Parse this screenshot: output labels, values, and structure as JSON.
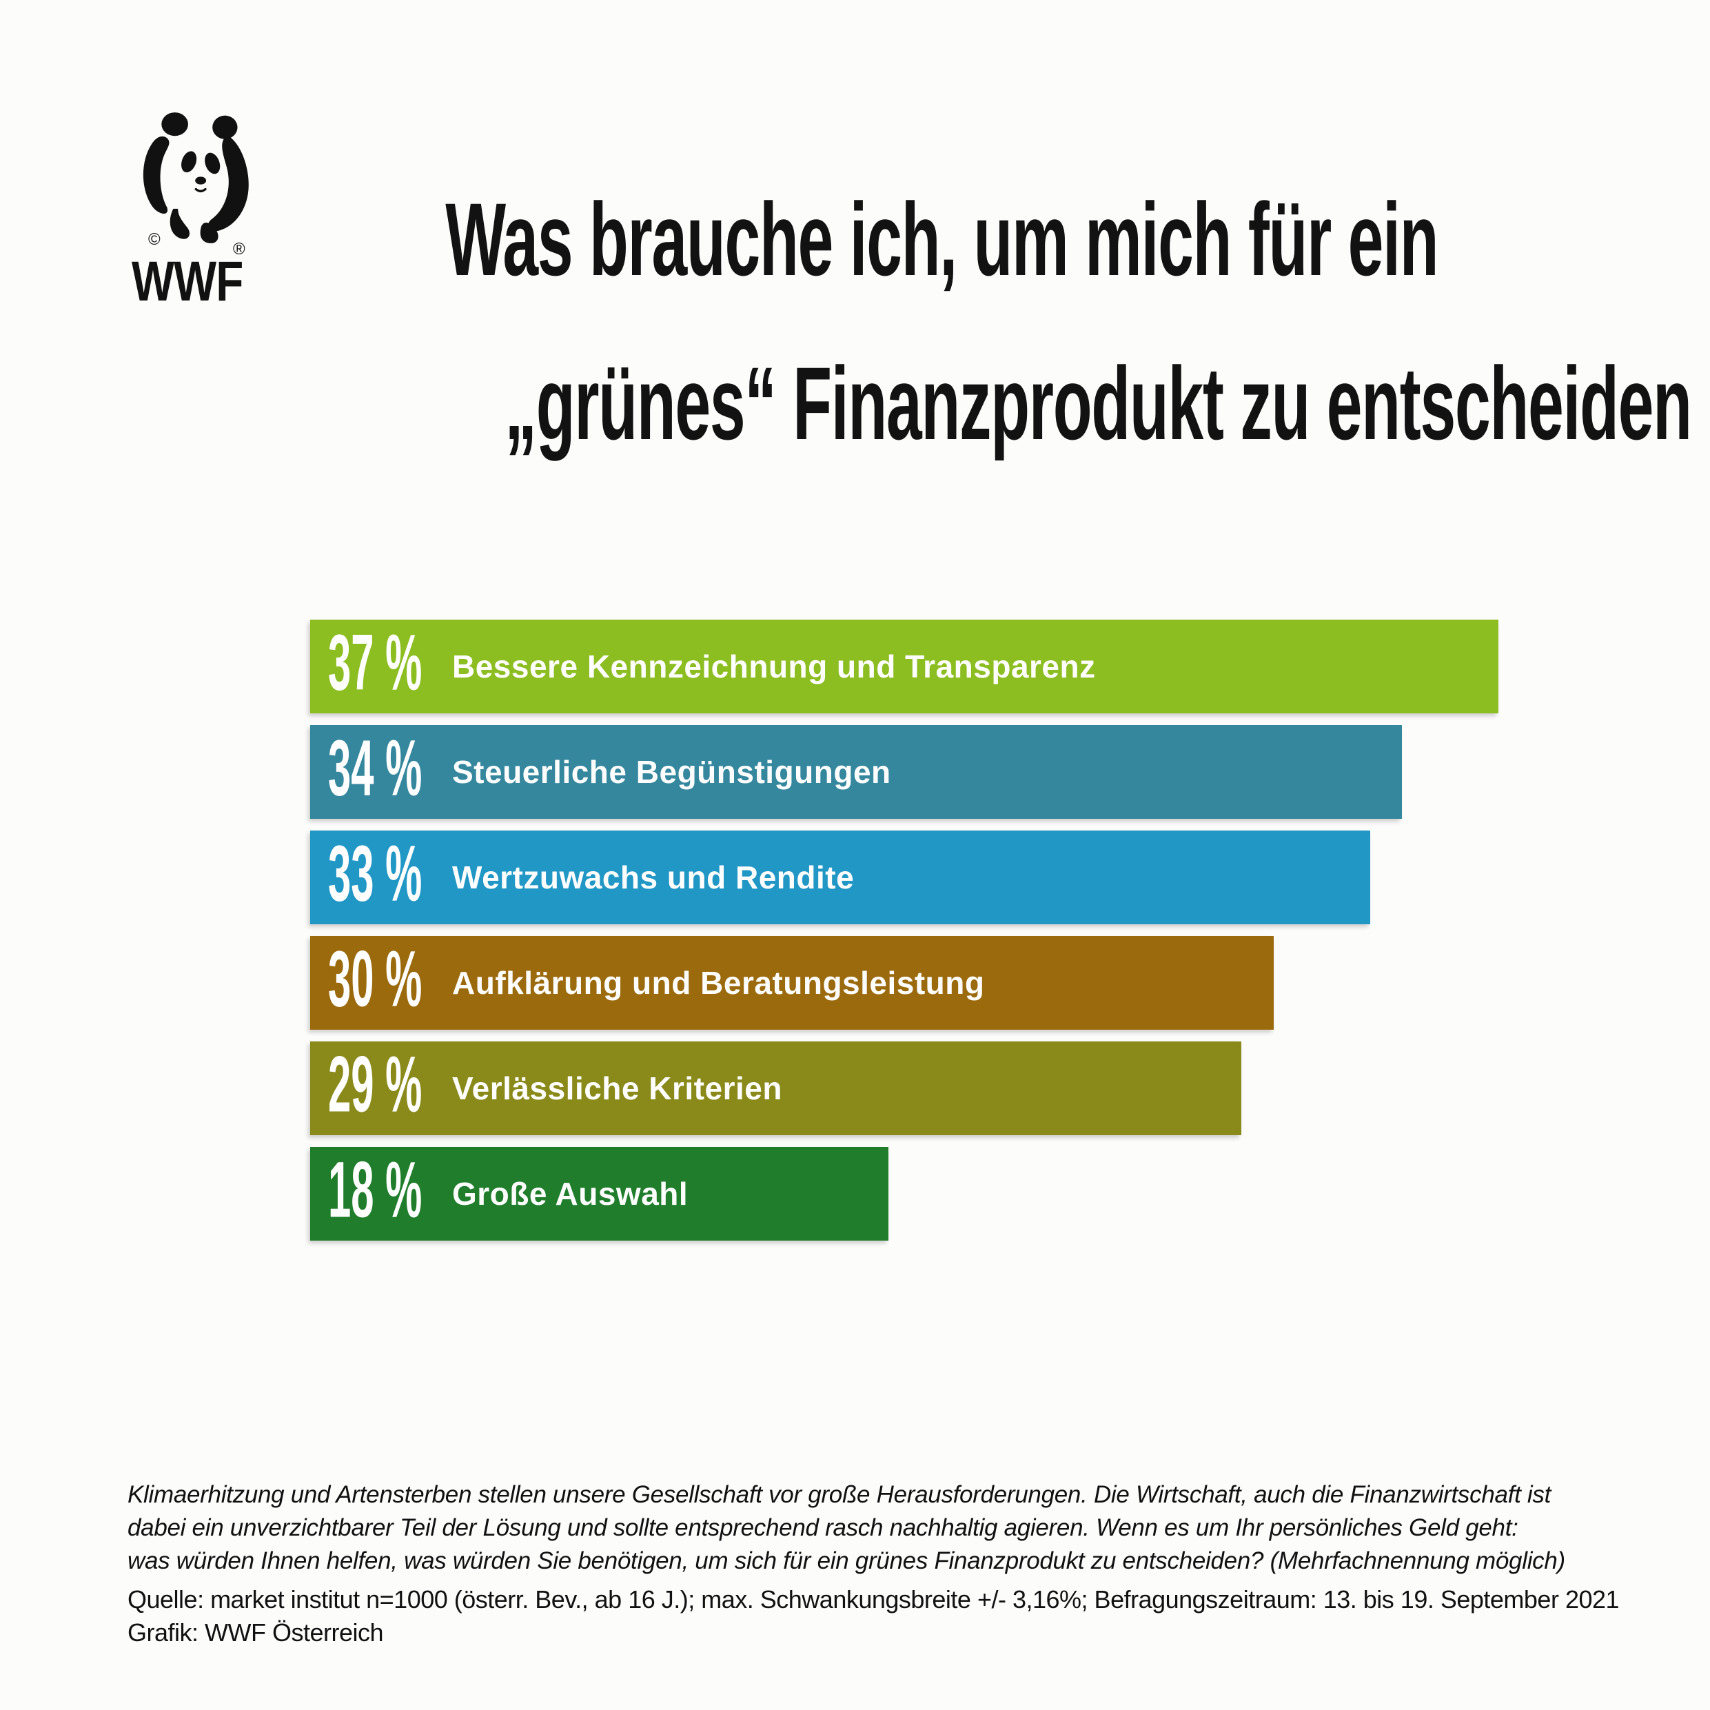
{
  "logo": {
    "brand": "WWF",
    "copyright": "©",
    "registered": "®"
  },
  "title": {
    "line1": "Was brauche ich, um mich für ein",
    "line2": "„grünes“ Finanzprodukt zu entscheiden"
  },
  "chart_data": {
    "type": "bar",
    "orientation": "horizontal",
    "categories": [
      "Bessere Kennzeichnung und Transparenz",
      "Steuerliche Begünstigungen",
      "Wertzuwachs und Rendite",
      "Aufklärung und Beratungsleistung",
      "Verlässliche Kriterien",
      "Große Auswahl"
    ],
    "values": [
      37,
      34,
      33,
      30,
      29,
      18
    ],
    "value_suffix": " %",
    "colors": [
      "#8CBE22",
      "#35879E",
      "#2197C5",
      "#9A6A0C",
      "#8A8A1B",
      "#1F7D2C"
    ],
    "xlim": [
      0,
      37
    ],
    "grid": false,
    "legend": "none"
  },
  "footer": {
    "note_lines": [
      "Klimaerhitzung und Artensterben stellen unsere Gesellschaft vor große Herausforderungen. Die Wirtschaft, auch die Finanzwirtschaft ist",
      "dabei ein unverzichtbarer Teil der Lösung und sollte entsprechend rasch nachhaltig agieren. Wenn es um Ihr persönliches Geld geht:",
      "was würden Ihnen helfen, was würden Sie benötigen, um sich für ein grünes Finanzprodukt zu entscheiden? (Mehrfachnennung möglich)"
    ],
    "source_lines": [
      "Quelle: market institut n=1000 (österr. Bev., ab 16 J.); max. Schwankungsbreite +/- 3,16%; Befragungszeitraum: 13. bis 19. September 2021",
      "Grafik: WWF Österreich"
    ]
  }
}
